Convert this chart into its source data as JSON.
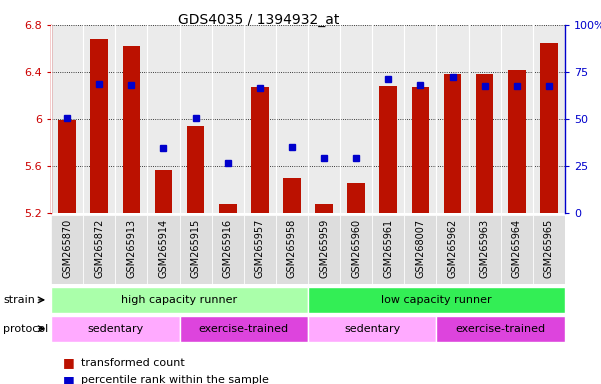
{
  "title": "GDS4035 / 1394932_at",
  "samples": [
    "GSM265870",
    "GSM265872",
    "GSM265913",
    "GSM265914",
    "GSM265915",
    "GSM265916",
    "GSM265957",
    "GSM265958",
    "GSM265959",
    "GSM265960",
    "GSM265961",
    "GSM268007",
    "GSM265962",
    "GSM265963",
    "GSM265964",
    "GSM265965"
  ],
  "bar_values": [
    5.99,
    6.68,
    6.62,
    5.57,
    5.94,
    5.28,
    6.27,
    5.5,
    5.28,
    5.46,
    6.28,
    6.27,
    6.38,
    6.38,
    6.42,
    6.65
  ],
  "percentile_values": [
    6.01,
    6.3,
    6.29,
    5.75,
    6.01,
    5.63,
    6.26,
    5.76,
    5.67,
    5.67,
    6.34,
    6.29,
    6.36,
    6.28,
    6.28,
    6.28
  ],
  "bar_bottom": 5.2,
  "ylim_left": [
    5.2,
    6.8
  ],
  "ylim_right": [
    0,
    100
  ],
  "yticks_left": [
    5.2,
    5.6,
    6.0,
    6.4,
    6.8
  ],
  "yticks_right": [
    0,
    25,
    50,
    75,
    100
  ],
  "ytick_labels_left": [
    "5.2",
    "5.6",
    "6",
    "6.4",
    "6.8"
  ],
  "ytick_labels_right": [
    "0",
    "25",
    "50",
    "75",
    "100%"
  ],
  "bar_color": "#bb1100",
  "dot_color": "#0000cc",
  "strain_labels": [
    {
      "text": "high capacity runner",
      "start": 0,
      "end": 8,
      "color": "#aaffaa"
    },
    {
      "text": "low capacity runner",
      "start": 8,
      "end": 16,
      "color": "#33ee55"
    }
  ],
  "protocol_labels": [
    {
      "text": "sedentary",
      "start": 0,
      "end": 4,
      "color": "#ffaaff"
    },
    {
      "text": "exercise-trained",
      "start": 4,
      "end": 8,
      "color": "#dd44dd"
    },
    {
      "text": "sedentary",
      "start": 8,
      "end": 12,
      "color": "#ffaaff"
    },
    {
      "text": "exercise-trained",
      "start": 12,
      "end": 16,
      "color": "#dd44dd"
    }
  ],
  "legend_items": [
    {
      "label": "transformed count",
      "color": "#bb1100"
    },
    {
      "label": "percentile rank within the sample",
      "color": "#0000cc"
    }
  ],
  "strain_row_label": "strain",
  "protocol_row_label": "protocol",
  "left_axis_color": "#cc0000",
  "right_axis_color": "#0000cc",
  "tick_label_fontsize": 8,
  "sample_fontsize": 7,
  "annotation_fontsize": 8
}
